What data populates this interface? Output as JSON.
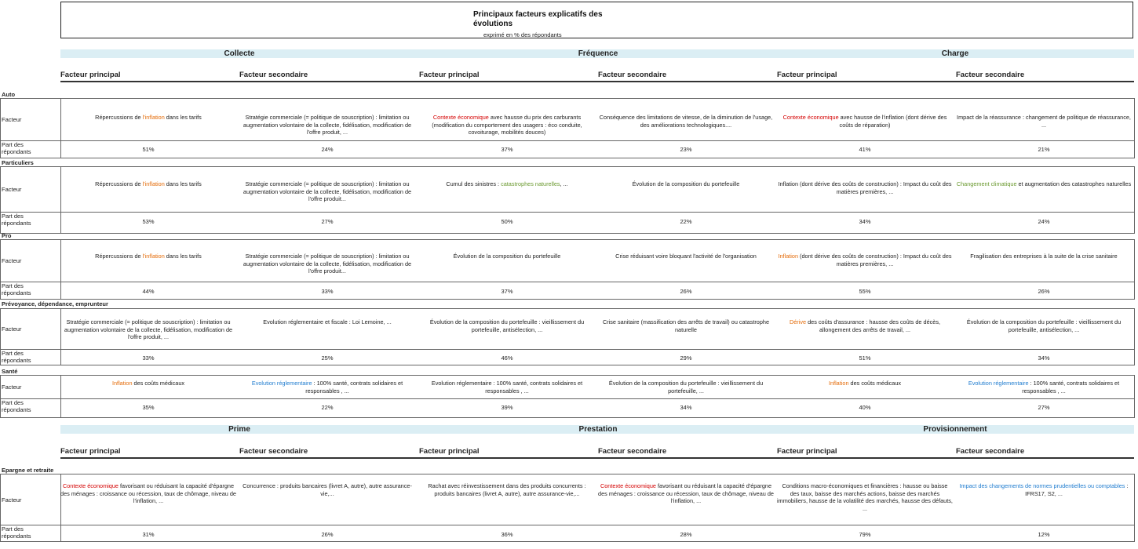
{
  "title": "Principaux facteurs explicatifs des évolutions",
  "subtitle": "exprimé en % des répondants",
  "groups_top": [
    "Collecte",
    "Fréquence",
    "Charge"
  ],
  "groups_bottom": [
    "Prime",
    "Prestation",
    "Provisionnement"
  ],
  "col_headers": [
    "Facteur principal",
    "Facteur secondaire",
    "Facteur principal",
    "Facteur secondaire",
    "Facteur principal",
    "Facteur secondaire"
  ],
  "row_labels": {
    "facteur": "Facteur",
    "part": "Part des répondants"
  },
  "colors": {
    "red": "#d40000",
    "orange": "#e46c0a",
    "green": "#6b9a30",
    "blue": "#1f7ccf",
    "band": "#dbeef4"
  },
  "sections": [
    {
      "name": "Auto",
      "cells": [
        {
          "pre": "Répercussions  de ",
          "hl": "l'inflation",
          "hl_color": "orange",
          "post": " dans les tarifs"
        },
        {
          "pre": "Stratégie commerciale  (= politique  de souscription)  : limitation  ou augmentation  volontaire de la collecte, fidélisation,  modification de l'offre produit, ...",
          "hl": "",
          "hl_color": "",
          "post": ""
        },
        {
          "pre": "",
          "hl": "Contexte économique",
          "hl_color": "red",
          "post": "  avec hausse du prix des carburants (modification  du comportement  des usagers : éco conduite, covoiturage, mobilités douces)"
        },
        {
          "pre": "Conséquence  des limitations de vitesse,  de la diminution  de l'usage, des améliorations technologiques....",
          "hl": "",
          "hl_color": "",
          "post": ""
        },
        {
          "pre": "",
          "hl": "Contexte économique",
          "hl_color": "red",
          "post": "  avec hausse de l'inflation  (dont dérive des coûts de réparation)"
        },
        {
          "pre": "Impact de la réassurance  : changement de politique  de réassurance,  ...",
          "hl": "",
          "hl_color": "",
          "post": ""
        }
      ],
      "pcts": [
        "51%",
        "24%",
        "37%",
        "23%",
        "41%",
        "21%"
      ]
    },
    {
      "name": "Particuliers",
      "cells": [
        {
          "pre": "Répercussions  de ",
          "hl": "l'inflation",
          "hl_color": "orange",
          "post": " dans les tarifs"
        },
        {
          "pre": "Stratégie commerciale  (= politique  de souscription)  : limitation  ou augmentation  volontaire de la collecte, fidélisation,  modification  de l'offre produit...",
          "hl": "",
          "hl_color": "",
          "post": ""
        },
        {
          "pre": "Cumul des sinistres : ",
          "hl": "catastrophes naturelles",
          "hl_color": "green",
          "post": ",  ..."
        },
        {
          "pre": "Évolution de la composition  du portefeuille",
          "hl": "",
          "hl_color": "",
          "post": ""
        },
        {
          "pre": "Inflation  (dont dérive des coûts de construction)  : Impact du coût des matières  premières,  ...",
          "hl": "",
          "hl_color": "",
          "post": ""
        },
        {
          "pre": "",
          "hl": "Changement climatique",
          "hl_color": "green",
          "post": "  et augmentation  des catastrophes naturelles"
        }
      ],
      "pcts": [
        "53%",
        "27%",
        "50%",
        "22%",
        "34%",
        "24%"
      ]
    },
    {
      "name": "Pro",
      "cells": [
        {
          "pre": "Répercussions  de ",
          "hl": "l'inflation",
          "hl_color": "orange",
          "post": " dans les tarifs"
        },
        {
          "pre": "Stratégie commerciale  (= politique  de souscription)  : limitation  ou augmentation  volontaire de la collecte, fidélisation,  modification  de l'offre produit...",
          "hl": "",
          "hl_color": "",
          "post": ""
        },
        {
          "pre": "Évolution de la composition  du portefeuille",
          "hl": "",
          "hl_color": "",
          "post": ""
        },
        {
          "pre": "Crise réduisant  voire bloquant  l'activité de l'organisation",
          "hl": "",
          "hl_color": "",
          "post": ""
        },
        {
          "pre": "",
          "hl": "Inflation",
          "hl_color": "orange",
          "post": "  (dont dérive des coûts de construction)  : Impact du coût des matières  premières,  ..."
        },
        {
          "pre": "Fragilisation  des entreprises  à la suite de la crise sanitaire",
          "hl": "",
          "hl_color": "",
          "post": ""
        }
      ],
      "pcts": [
        "44%",
        "33%",
        "37%",
        "26%",
        "55%",
        "26%"
      ]
    },
    {
      "name": "Prévoyance,  dépendance,  emprunteur",
      "cells": [
        {
          "pre": "Stratégie commerciale  (= politique  de souscription)  : limitation  ou augmentation  volontaire de la collecte, fidélisation,  modification  de l'offre produit,  ...",
          "hl": "",
          "hl_color": "",
          "post": ""
        },
        {
          "pre": "Evolution  réglementaire  et fiscale : Loi Lemoine,  ...",
          "hl": "",
          "hl_color": "",
          "post": ""
        },
        {
          "pre": "Évolution de la composition  du portefeuille  : vieillissement du portefeuille,  antisélection,  ...",
          "hl": "",
          "hl_color": "",
          "post": ""
        },
        {
          "pre": "Crise sanitaire  (massification  des arrêts de travail)  ou catastrophe  naturelle",
          "hl": "",
          "hl_color": "",
          "post": ""
        },
        {
          "pre": "",
          "hl": "Dérive",
          "hl_color": "orange",
          "post": " des coûts d'assurance  : hausse des coûts de décès, allongement des arrêts de travail,  ..."
        },
        {
          "pre": "Évolution de la composition  du portefeuille  : vieillissement du portefeuille,  antisélection,  ...",
          "hl": "",
          "hl_color": "",
          "post": ""
        }
      ],
      "pcts": [
        "33%",
        "25%",
        "46%",
        "29%",
        "51%",
        "34%"
      ]
    },
    {
      "name": "Santé",
      "cells": [
        {
          "pre": "",
          "hl": "Inflation",
          "hl_color": "orange",
          "post": " des coûts médicaux"
        },
        {
          "pre": "",
          "hl": "Evolution  réglementaire",
          "hl_color": "blue",
          "post": "  : 100% santé, contrats  solidaires  et responsables  , ..."
        },
        {
          "pre": "Evolution  réglementaire  : 100% santé, contrats  solidaires  et responsables  , ...",
          "hl": "",
          "hl_color": "",
          "post": ""
        },
        {
          "pre": "Évolution de la composition  du portefeuille  : vieillissement du portefeuille,  ...",
          "hl": "",
          "hl_color": "",
          "post": ""
        },
        {
          "pre": "",
          "hl": "Inflation",
          "hl_color": "orange",
          "post": " des coûts  médicaux"
        },
        {
          "pre": "",
          "hl": "Evolution  réglementaire",
          "hl_color": "blue",
          "post": "  : 100% santé, contrats  solidaires  et responsables  , ..."
        }
      ],
      "pcts": [
        "35%",
        "22%",
        "39%",
        "34%",
        "40%",
        "27%"
      ]
    },
    {
      "name": "Epargne et retraite",
      "cells": [
        {
          "pre": "",
          "hl": "Contexte économique",
          "hl_color": "red",
          "post": "  favorisant  ou réduisant  la capacité d'épargne des ménages : croissance  ou récession,  taux de chômage, niveau de l'inflation,  ..."
        },
        {
          "pre": "Concurrence  : produits  bancaires (livret A, autre), autre assurance-vie,...",
          "hl": "",
          "hl_color": "",
          "post": ""
        },
        {
          "pre": "Rachat avec réinvestissement  dans des produits  concurrents  : produits  bancaires (livret A, autre), autre assurance-vie,...",
          "hl": "",
          "hl_color": "",
          "post": ""
        },
        {
          "pre": "",
          "hl": "Contexte économique",
          "hl_color": "red",
          "post": "  favorisant  ou réduisant  la capacité d'épargne des ménages : croissance  ou récession,  taux de chômage, niveau de l'inflation,  ..."
        },
        {
          "pre": "Conditions  macro-économiques  et financières  : hausse ou baisse des taux, baisse des marchés actions,  baisse des marchés immobiliers,  hausse de la volatilité des marchés, hausse des défauts,  ...",
          "hl": "",
          "hl_color": "",
          "post": ""
        },
        {
          "pre": "",
          "hl": "Impact des changements  de normes  prudentielles  ou comptables",
          "hl_color": "blue",
          "post": "  : IFRS17,  S2, ..."
        }
      ],
      "pcts": [
        "31%",
        "26%",
        "36%",
        "28%",
        "79%",
        "12%"
      ]
    }
  ]
}
